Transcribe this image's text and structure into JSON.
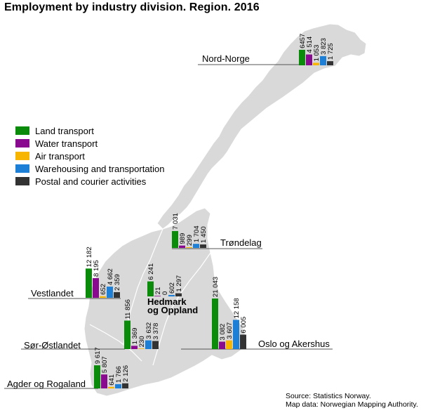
{
  "title": "Employment by industry division. Region. 2016",
  "source_lines": [
    "Source: Statistics Norway.",
    "Map data: Norwegian Mapping Authority."
  ],
  "colors": {
    "land": "#0a8b0a",
    "water": "#8a0a8f",
    "air": "#f7b500",
    "warehousing": "#1d7fd6",
    "postal": "#333333",
    "map_fill": "#d9d9d9",
    "map_stroke": "#ffffff"
  },
  "chart_data": {
    "type": "bar",
    "title": "Employment by industry division. Region. 2016",
    "series_names": [
      "Land transport",
      "Water transport",
      "Air transport",
      "Warehousing and transportation",
      "Postal and courier activities"
    ],
    "regions": [
      {
        "name": "Nord-Norge",
        "labels": [
          "6457",
          "4 514",
          "1 053",
          "3 823",
          "1 725"
        ],
        "values": [
          6457,
          4514,
          1053,
          3823,
          1725
        ]
      },
      {
        "name": "Trøndelag",
        "labels": [
          "7 031",
          "989",
          "299",
          "1 704",
          "1 450"
        ],
        "values": [
          7031,
          989,
          299,
          1704,
          1450
        ]
      },
      {
        "name": "Vestlandet",
        "labels": [
          "12 182",
          "8 195",
          "652",
          "4 662",
          "2 359"
        ],
        "values": [
          12182,
          8195,
          652,
          4662,
          2359
        ]
      },
      {
        "name": "Hedmark og Oppland",
        "labels": [
          "6 241",
          "21",
          "0",
          "602",
          "1 297"
        ],
        "values": [
          6241,
          21,
          0,
          602,
          1297
        ]
      },
      {
        "name": "Oslo og Akershus",
        "labels": [
          "21 043",
          "3 082",
          "3 607",
          "12 158",
          "6 005"
        ],
        "values": [
          21043,
          3082,
          3607,
          12158,
          6005
        ]
      },
      {
        "name": "Sør-Østlandet",
        "labels": [
          "11 856",
          "1 369",
          "230",
          "3 632",
          "3 378"
        ],
        "values": [
          11856,
          1369,
          230,
          3632,
          3378
        ]
      },
      {
        "name": "Agder og Rogaland",
        "labels": [
          "9 617",
          "5 807",
          "641",
          "1 766",
          "2 126"
        ],
        "values": [
          9617,
          5807,
          641,
          1766,
          2126
        ]
      }
    ]
  }
}
